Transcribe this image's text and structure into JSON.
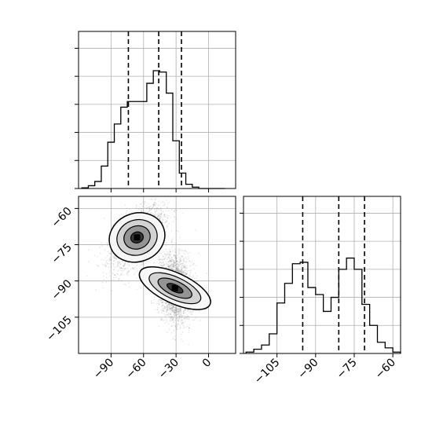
{
  "chart_data": [
    {
      "type": "bar",
      "panel": "top-left histogram",
      "histtype": "step",
      "title": "",
      "xlabel": "",
      "ylabel": "",
      "bin_edges": [
        -117,
        -111,
        -105,
        -99,
        -93,
        -87,
        -81,
        -75,
        -69,
        -63,
        -57,
        -51,
        -45,
        -39,
        -33,
        -27,
        -21,
        -15,
        -9,
        -3,
        3,
        9,
        15
      ],
      "values": [
        0.5,
        2,
        5,
        16,
        33,
        46,
        58,
        62,
        62,
        62,
        75,
        84,
        83,
        68,
        34,
        11,
        3,
        1,
        0,
        0,
        0,
        0
      ],
      "quantiles": [
        -74,
        -46,
        -25
      ],
      "xlim": [
        -120,
        25
      ],
      "ylim": [
        0,
        112
      ],
      "grid": true
    },
    {
      "type": "scatter",
      "panel": "bottom-left 2d density",
      "title": "",
      "xlabel": "",
      "ylabel": "",
      "clusters": [
        {
          "center": [
            -66,
            -72
          ],
          "spread": [
            13,
            5
          ],
          "rotation_deg": 20
        },
        {
          "center": [
            -31,
            -93
          ],
          "spread": [
            7,
            8
          ],
          "rotation_deg": 65
        }
      ],
      "x_ticks": [
        -90,
        -60,
        -30,
        0
      ],
      "y_ticks": [
        -60,
        -75,
        -90,
        -105
      ],
      "xlim": [
        -120,
        25
      ],
      "ylim": [
        -120,
        -55
      ],
      "grid": true
    },
    {
      "type": "bar",
      "panel": "bottom-right histogram",
      "histtype": "step",
      "title": "",
      "xlabel": "",
      "ylabel": "",
      "bin_edges": [
        -117,
        -114,
        -111,
        -108,
        -105,
        -102,
        -99,
        -96,
        -93,
        -90,
        -87,
        -84,
        -81,
        -78,
        -75,
        -72,
        -69,
        -66,
        -63,
        -60,
        -57
      ],
      "values": [
        1,
        3,
        6,
        14,
        36,
        50,
        64,
        65,
        47,
        42,
        30,
        40,
        60,
        68,
        60,
        35,
        20,
        8,
        4,
        1
      ],
      "quantiles": [
        -95,
        -81,
        -71
      ],
      "x_ticks": [
        -105,
        -90,
        -75,
        -60
      ],
      "xlim": [
        -118,
        -57
      ],
      "ylim": [
        0,
        112
      ],
      "grid": true
    }
  ]
}
